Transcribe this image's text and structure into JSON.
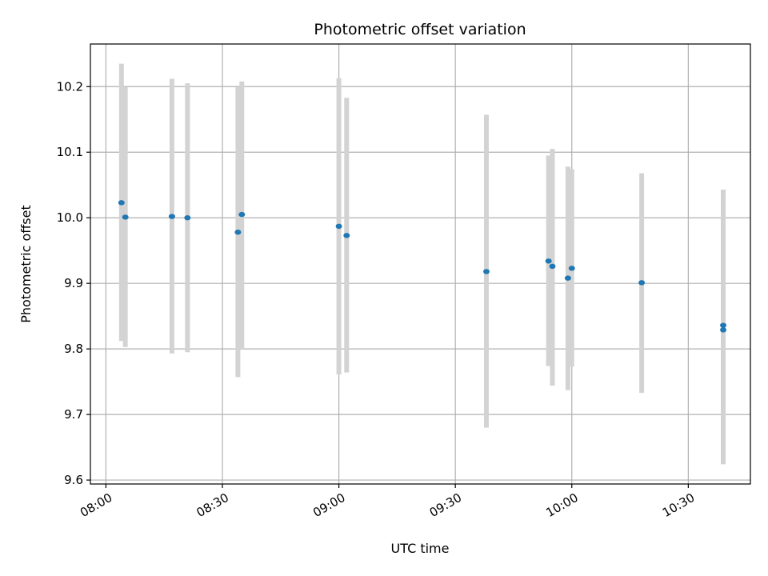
{
  "chart_data": {
    "type": "scatter",
    "title": "Photometric offset variation",
    "xlabel": "UTC time",
    "ylabel": "Photometric offset",
    "x_tick_labels": [
      "08:00",
      "08:30",
      "09:00",
      "09:30",
      "10:00",
      "10:30"
    ],
    "y_tick_labels": [
      "9.6",
      "9.7",
      "9.8",
      "9.9",
      "10.0",
      "10.1",
      "10.2"
    ],
    "x_ticks": [
      "08:00",
      "08:30",
      "09:00",
      "09:30",
      "10:00",
      "10:30"
    ],
    "y_ticks": [
      9.6,
      9.7,
      9.8,
      9.9,
      10.0,
      10.1,
      10.2
    ],
    "xlim": [
      "07:56",
      "10:46"
    ],
    "ylim": [
      9.594,
      10.265
    ],
    "grid": true,
    "colors": {
      "point": "#1f77b4",
      "errorbar": "#d3d3d3",
      "grid": "#b0b0b0"
    },
    "points": [
      {
        "time": "08:04",
        "y": 10.023,
        "err_low": 9.812,
        "err_high": 10.235
      },
      {
        "time": "08:05",
        "y": 10.001,
        "err_low": 9.803,
        "err_high": 10.199
      },
      {
        "time": "08:17",
        "y": 10.002,
        "err_low": 9.793,
        "err_high": 10.212
      },
      {
        "time": "08:21",
        "y": 10.0,
        "err_low": 9.795,
        "err_high": 10.205
      },
      {
        "time": "08:34",
        "y": 9.978,
        "err_low": 9.757,
        "err_high": 10.199
      },
      {
        "time": "08:35",
        "y": 10.005,
        "err_low": 9.8,
        "err_high": 10.208
      },
      {
        "time": "09:00",
        "y": 9.987,
        "err_low": 9.761,
        "err_high": 10.213
      },
      {
        "time": "09:02",
        "y": 9.973,
        "err_low": 9.764,
        "err_high": 10.183
      },
      {
        "time": "09:38",
        "y": 9.918,
        "err_low": 9.68,
        "err_high": 10.157
      },
      {
        "time": "09:54",
        "y": 9.934,
        "err_low": 9.774,
        "err_high": 10.095
      },
      {
        "time": "09:55",
        "y": 9.926,
        "err_low": 9.744,
        "err_high": 10.105
      },
      {
        "time": "09:59",
        "y": 9.908,
        "err_low": 9.737,
        "err_high": 10.078
      },
      {
        "time": "10:00",
        "y": 9.923,
        "err_low": 9.773,
        "err_high": 10.074
      },
      {
        "time": "10:18",
        "y": 9.901,
        "err_low": 9.733,
        "err_high": 10.068
      },
      {
        "time": "10:39",
        "y": 9.836,
        "err_low": 9.625,
        "err_high": 10.043
      },
      {
        "time": "10:39",
        "y": 9.829,
        "err_low": 9.624,
        "err_high": 10.032
      }
    ]
  }
}
